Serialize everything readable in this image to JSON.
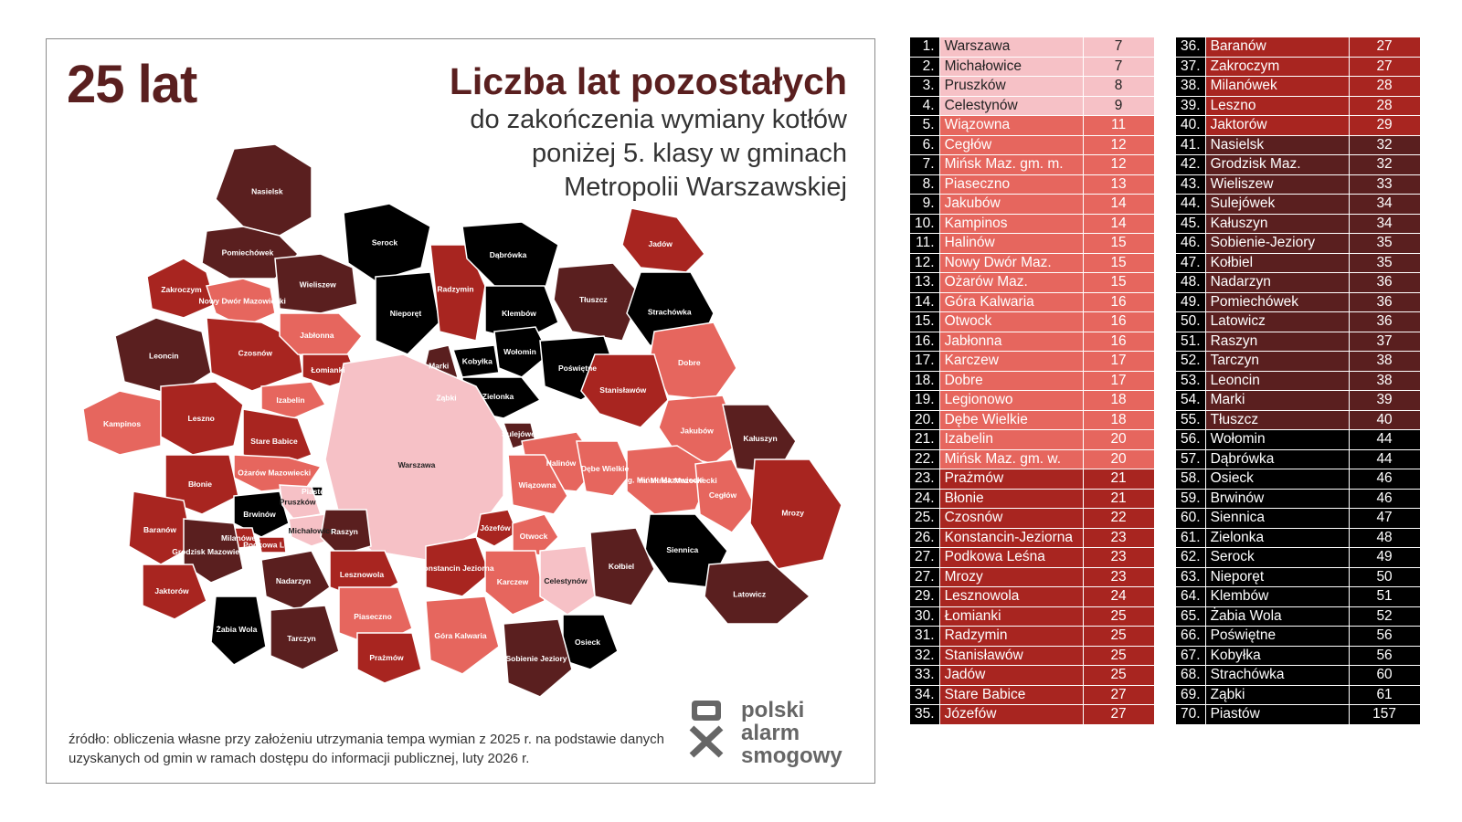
{
  "headline": {
    "big_years": "25 lat",
    "title": "Liczba lat pozostałych",
    "subtitle_lines": [
      "do zakończenia wymiany kotłów",
      "poniżej 5. klasy w gminach",
      "Metropolii Warszawskiej"
    ]
  },
  "source_note": "źródło: obliczenia własne przy założeniu utrzymania tempa wymian z 2025 r. na podstawie danych uzyskanych od gmin w ramach dostępu do informacji publicznej, luty 2026 r.",
  "logo": {
    "lines": [
      "polski",
      "alarm",
      "smogowy"
    ]
  },
  "colors": {
    "class_0_10": "#f6c1c6",
    "class_11_20": "#e6665e",
    "class_21_30": "#a82520",
    "class_31_40": "#5a1f1f",
    "class_40_plus": "#000000",
    "title": "#5a1f1f"
  },
  "ranking": [
    {
      "rank": "1.",
      "name": "Warszawa",
      "years": "7"
    },
    {
      "rank": "2.",
      "name": "Michałowice",
      "years": "7"
    },
    {
      "rank": "3.",
      "name": "Pruszków",
      "years": "8"
    },
    {
      "rank": "4.",
      "name": "Celestynów",
      "years": "9"
    },
    {
      "rank": "5.",
      "name": "Wiązowna",
      "years": "11"
    },
    {
      "rank": "6.",
      "name": "Cegłów",
      "years": "12"
    },
    {
      "rank": "7.",
      "name": "Mińsk Maz. gm. m.",
      "years": "12"
    },
    {
      "rank": "8.",
      "name": "Piaseczno",
      "years": "13"
    },
    {
      "rank": "9.",
      "name": "Jakubów",
      "years": "14"
    },
    {
      "rank": "10.",
      "name": "Kampinos",
      "years": "14"
    },
    {
      "rank": "11.",
      "name": "Halinów",
      "years": "15"
    },
    {
      "rank": "12.",
      "name": "Nowy Dwór Maz.",
      "years": "15"
    },
    {
      "rank": "13.",
      "name": "Ożarów Maz.",
      "years": "15"
    },
    {
      "rank": "14.",
      "name": "Góra Kalwaria",
      "years": "16"
    },
    {
      "rank": "15.",
      "name": "Otwock",
      "years": "16"
    },
    {
      "rank": "16.",
      "name": "Jabłonna",
      "years": "16"
    },
    {
      "rank": "17.",
      "name": "Karczew",
      "years": "17"
    },
    {
      "rank": "18.",
      "name": "Dobre",
      "years": "17"
    },
    {
      "rank": "19.",
      "name": "Legionowo",
      "years": "18"
    },
    {
      "rank": "20.",
      "name": "Dębe Wielkie",
      "years": "18"
    },
    {
      "rank": "21.",
      "name": "Izabelin",
      "years": "20"
    },
    {
      "rank": "22.",
      "name": "Mińsk Maz. gm. w.",
      "years": "20"
    },
    {
      "rank": "23.",
      "name": "Prażmów",
      "years": "21"
    },
    {
      "rank": "24.",
      "name": "Błonie",
      "years": "21"
    },
    {
      "rank": "25.",
      "name": "Czosnów",
      "years": "22"
    },
    {
      "rank": "26.",
      "name": "Konstancin-Jeziorna",
      "years": "23"
    },
    {
      "rank": "27.",
      "name": "Podkowa Leśna",
      "years": "23"
    },
    {
      "rank": "27.",
      "name": "Mrozy",
      "years": "23"
    },
    {
      "rank": "29.",
      "name": "Lesznowola",
      "years": "24"
    },
    {
      "rank": "30.",
      "name": "Łomianki",
      "years": "25"
    },
    {
      "rank": "31.",
      "name": "Radzymin",
      "years": "25"
    },
    {
      "rank": "32.",
      "name": "Stanisławów",
      "years": "25"
    },
    {
      "rank": "33.",
      "name": "Jadów",
      "years": "25"
    },
    {
      "rank": "34.",
      "name": "Stare Babice",
      "years": "27"
    },
    {
      "rank": "35.",
      "name": "Józefów",
      "years": "27"
    },
    {
      "rank": "36.",
      "name": "Baranów",
      "years": "27"
    },
    {
      "rank": "37.",
      "name": "Zakroczym",
      "years": "27"
    },
    {
      "rank": "38.",
      "name": "Milanówek",
      "years": "28"
    },
    {
      "rank": "39.",
      "name": "Leszno",
      "years": "28"
    },
    {
      "rank": "40.",
      "name": "Jaktorów",
      "years": "29"
    },
    {
      "rank": "41.",
      "name": "Nasielsk",
      "years": "32"
    },
    {
      "rank": "42.",
      "name": "Grodzisk Maz.",
      "years": "32"
    },
    {
      "rank": "43.",
      "name": "Wieliszew",
      "years": "33"
    },
    {
      "rank": "44.",
      "name": "Sulejówek",
      "years": "34"
    },
    {
      "rank": "45.",
      "name": "Kałuszyn",
      "years": "34"
    },
    {
      "rank": "46.",
      "name": "Sobienie-Jeziory",
      "years": "35"
    },
    {
      "rank": "47.",
      "name": "Kołbiel",
      "years": "35"
    },
    {
      "rank": "48.",
      "name": "Nadarzyn",
      "years": "36"
    },
    {
      "rank": "49.",
      "name": "Pomiechówek",
      "years": "36"
    },
    {
      "rank": "50.",
      "name": "Latowicz",
      "years": "36"
    },
    {
      "rank": "51.",
      "name": "Raszyn",
      "years": "37"
    },
    {
      "rank": "52.",
      "name": "Tarczyn",
      "years": "38"
    },
    {
      "rank": "53.",
      "name": "Leoncin",
      "years": "38"
    },
    {
      "rank": "54.",
      "name": "Marki",
      "years": "39"
    },
    {
      "rank": "55.",
      "name": "Tłuszcz",
      "years": "40"
    },
    {
      "rank": "56.",
      "name": "Wołomin",
      "years": "44"
    },
    {
      "rank": "57.",
      "name": "Dąbrówka",
      "years": "44"
    },
    {
      "rank": "58.",
      "name": "Osieck",
      "years": "46"
    },
    {
      "rank": "59.",
      "name": "Brwinów",
      "years": "46"
    },
    {
      "rank": "60.",
      "name": "Siennica",
      "years": "47"
    },
    {
      "rank": "61.",
      "name": "Zielonka",
      "years": "48"
    },
    {
      "rank": "62.",
      "name": "Serock",
      "years": "49"
    },
    {
      "rank": "63.",
      "name": "Nieporęt",
      "years": "50"
    },
    {
      "rank": "64.",
      "name": "Klembów",
      "years": "51"
    },
    {
      "rank": "65.",
      "name": "Żabia Wola",
      "years": "52"
    },
    {
      "rank": "66.",
      "name": "Poświętne",
      "years": "56"
    },
    {
      "rank": "67.",
      "name": "Kobyłka",
      "years": "56"
    },
    {
      "rank": "68.",
      "name": "Strachówka",
      "years": "60"
    },
    {
      "rank": "69.",
      "name": "Ząbki",
      "years": "61"
    },
    {
      "rank": "70.",
      "name": "Piastów",
      "years": "157"
    }
  ],
  "map_regions": [
    {
      "name": "Nasielsk",
      "label": "Nasielsk",
      "years": 32
    },
    {
      "name": "Pomiechówek",
      "label": "Pomiechówek",
      "years": 36
    },
    {
      "name": "Zakroczym",
      "label": "Zakroczym",
      "years": 27
    },
    {
      "name": "Nowy Dwór Maz.",
      "label": "Nowy Dwór Mazowiecki",
      "years": 15
    },
    {
      "name": "Wieliszew",
      "label": "Wieliszew",
      "years": 33
    },
    {
      "name": "Serock",
      "label": "Serock",
      "years": 49
    },
    {
      "name": "Nieporęt",
      "label": "Nieporęt",
      "years": 50
    },
    {
      "name": "Radzymin",
      "label": "Radzymin",
      "years": 25
    },
    {
      "name": "Dąbrówka",
      "label": "Dąbrówka",
      "years": 44
    },
    {
      "name": "Klembów",
      "label": "Klembów",
      "years": 51
    },
    {
      "name": "Tłuszcz",
      "label": "Tłuszcz",
      "years": 40
    },
    {
      "name": "Jadów",
      "label": "Jadów",
      "years": 25
    },
    {
      "name": "Strachówka",
      "label": "Strachówka",
      "years": 60
    },
    {
      "name": "Leoncin",
      "label": "Leoncin",
      "years": 38
    },
    {
      "name": "Czosnów",
      "label": "Czosnów",
      "years": 22
    },
    {
      "name": "Jabłonna",
      "label": "Jabłonna",
      "years": 16
    },
    {
      "name": "Łomianki",
      "label": "Łomianki",
      "years": 25
    },
    {
      "name": "Izabelin",
      "label": "Izabelin",
      "years": 20
    },
    {
      "name": "Marki",
      "label": "Marki",
      "years": 39
    },
    {
      "name": "Kobyłka",
      "label": "Kobyłka",
      "years": 56
    },
    {
      "name": "Wołomin",
      "label": "Wołomin",
      "years": 44
    },
    {
      "name": "Poświętne",
      "label": "Poświętne",
      "years": 56
    },
    {
      "name": "Ząbki",
      "label": "Ząbki",
      "years": 61
    },
    {
      "name": "Zielonka",
      "label": "Zielonka",
      "years": 48
    },
    {
      "name": "Dobre",
      "label": "Dobre",
      "years": 17
    },
    {
      "name": "Kampinos",
      "label": "Kampinos",
      "years": 14
    },
    {
      "name": "Leszno",
      "label": "Leszno",
      "years": 28
    },
    {
      "name": "Stare Babice",
      "label": "Stare Babice",
      "years": 27
    },
    {
      "name": "Warszawa",
      "label": "Warszawa",
      "years": 7
    },
    {
      "name": "Stanisławów",
      "label": "Stanisławów",
      "years": 25
    },
    {
      "name": "Ożarów Maz.",
      "label": "Ożarów Mazowiecki",
      "years": 15
    },
    {
      "name": "Błonie",
      "label": "Błonie",
      "years": 21
    },
    {
      "name": "Sulejówek",
      "label": "Sulejówek",
      "years": 34
    },
    {
      "name": "Halinów",
      "label": "Halinów",
      "years": 15
    },
    {
      "name": "Dębe Wielkie",
      "label": "Dębe Wielkie",
      "years": 18
    },
    {
      "name": "Jakubów",
      "label": "Jakubów",
      "years": 14
    },
    {
      "name": "Kałuszyn",
      "label": "Kałuszyn",
      "years": 34
    },
    {
      "name": "Mińsk Maz. gm. m.",
      "label": "m. Mińsk Mazowiecki",
      "years": 12
    },
    {
      "name": "Mińsk Maz. gm. w.",
      "label": "g. Mińsk Mazowiecki",
      "years": 20
    },
    {
      "name": "Piastów",
      "label": "Piastów",
      "years": 157
    },
    {
      "name": "Brwinów",
      "label": "Brwinów",
      "years": 46
    },
    {
      "name": "Pruszków",
      "label": "Pruszków",
      "years": 8
    },
    {
      "name": "Michałowice",
      "label": "Michałowice",
      "years": 7
    },
    {
      "name": "Raszyn",
      "label": "Raszyn",
      "years": 37
    },
    {
      "name": "Milanówek",
      "label": "Milanówek",
      "years": 28
    },
    {
      "name": "Podkowa Leśna",
      "label": "Podkowa Leśna",
      "years": 23
    },
    {
      "name": "Baranów",
      "label": "Baranów",
      "years": 27
    },
    {
      "name": "Grodzisk Maz.",
      "label": "Grodzisk Mazowiecki",
      "years": 32
    },
    {
      "name": "Wiązowna",
      "label": "Wiązowna",
      "years": 11
    },
    {
      "name": "Józefów",
      "label": "Józefów",
      "years": 27
    },
    {
      "name": "Cegłów",
      "label": "Cegłów",
      "years": 12
    },
    {
      "name": "Mrozy",
      "label": "Mrozy",
      "years": 23
    },
    {
      "name": "Otwock",
      "label": "Otwock",
      "years": 16
    },
    {
      "name": "Siennica",
      "label": "Siennica",
      "years": 47
    },
    {
      "name": "Lesznowola",
      "label": "Lesznowola",
      "years": 24
    },
    {
      "name": "Konstancin-Jeziorna",
      "label": "Konstancin Jeziorna",
      "years": 23
    },
    {
      "name": "Nadarzyn",
      "label": "Nadarzyn",
      "years": 36
    },
    {
      "name": "Jaktorów",
      "label": "Jaktorów",
      "years": 29
    },
    {
      "name": "Karczew",
      "label": "Karczew",
      "years": 17
    },
    {
      "name": "Kołbiel",
      "label": "Kołbiel",
      "years": 35
    },
    {
      "name": "Latowicz",
      "label": "Latowicz",
      "years": 36
    },
    {
      "name": "Celestynów",
      "label": "Celestynów",
      "years": 9
    },
    {
      "name": "Żabia Wola",
      "label": "Żabia Wola",
      "years": 52
    },
    {
      "name": "Piaseczno",
      "label": "Piaseczno",
      "years": 13
    },
    {
      "name": "Tarczyn",
      "label": "Tarczyn",
      "years": 38
    },
    {
      "name": "Prażmów",
      "label": "Prażmów",
      "years": 21
    },
    {
      "name": "Góra Kalwaria",
      "label": "Góra Kalwaria",
      "years": 16
    },
    {
      "name": "Osieck",
      "label": "Osieck",
      "years": 46
    },
    {
      "name": "Sobienie-Jeziory",
      "label": "Sobienie Jeziory",
      "years": 35
    }
  ]
}
